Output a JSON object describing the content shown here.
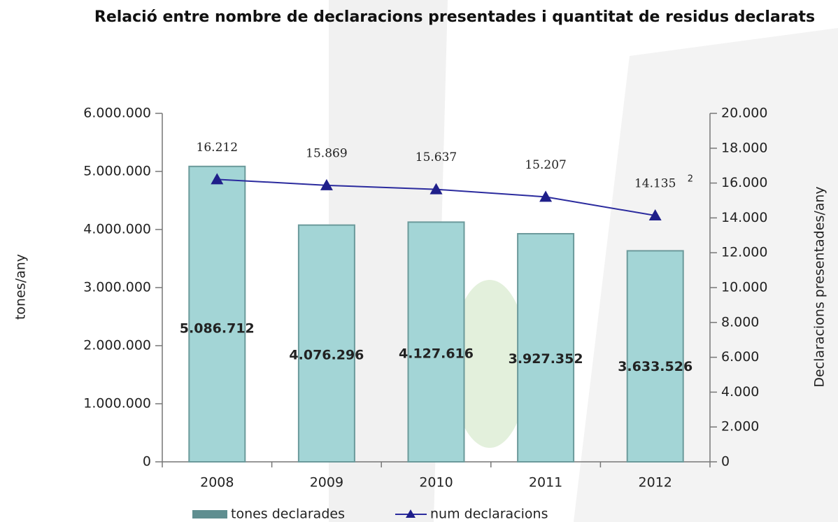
{
  "chart_data": {
    "type": "bar_line",
    "title": "Relació entre nombre de declaracions presentades i quantitat  de residus declarats",
    "ylabel": "tones/any",
    "y2label": "Declaracions presentades/any",
    "categories": [
      "2008",
      "2009",
      "2010",
      "2011",
      "2012"
    ],
    "series": [
      {
        "name": "tones declarades",
        "type": "bar",
        "color": "#a3d5d6",
        "values": [
          5086712,
          4076296,
          4127616,
          3927352,
          3633526
        ],
        "value_labels": [
          "5.086.712",
          "4.076.296",
          "4.127.616",
          "3.927.352",
          "3.633.526"
        ]
      },
      {
        "name": "num declaracions",
        "type": "line",
        "axis": "y2",
        "color": "#2b2b9e",
        "values": [
          16212,
          15869,
          15637,
          15207,
          14135
        ],
        "value_labels": [
          "16.212",
          "15.869",
          "15.637",
          "15.207",
          "14.135"
        ]
      }
    ],
    "annotations": [
      "2"
    ],
    "ylim": [
      0,
      6000000
    ],
    "yticks": [
      0,
      {
        "value": 1000000,
        "label": "1.000.000"
      },
      {
        "value": 2000000,
        "label": "2.000.000"
      },
      {
        "value": 3000000,
        "label": "3.000.000"
      },
      {
        "value": 4000000,
        "label": "4.000.000"
      },
      {
        "value": 5000000,
        "label": "5.000.000"
      },
      {
        "value": 6000000,
        "label": "6.000.000"
      }
    ],
    "y2lim": [
      0,
      20000
    ],
    "y2ticks": [
      0,
      {
        "value": 2000,
        "label": "2.000"
      },
      {
        "value": 4000,
        "label": "4.000"
      },
      {
        "value": 6000,
        "label": "6.000"
      },
      {
        "value": 8000,
        "label": "8.000"
      },
      {
        "value": 10000,
        "label": "10.000"
      },
      {
        "value": 12000,
        "label": "12.000"
      },
      {
        "value": 14000,
        "label": "14.000"
      },
      {
        "value": 16000,
        "label": "16.000"
      },
      {
        "value": 18000,
        "label": "18.000"
      },
      {
        "value": 20000,
        "label": "20.000"
      }
    ],
    "grid": false,
    "legend": "bottom"
  }
}
